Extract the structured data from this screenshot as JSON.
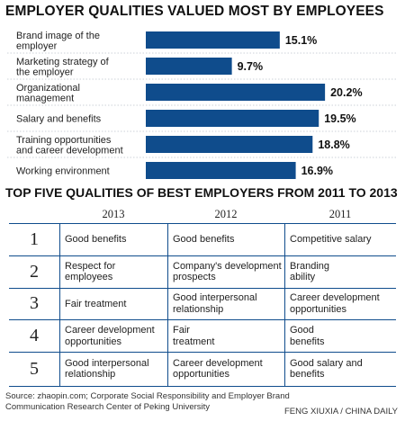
{
  "chart_data": {
    "type": "bar",
    "title": "EMPLOYER QUALITIES VALUED MOST BY EMPLOYEES",
    "categories": [
      "Brand image of the\nemployer",
      "Marketing strategy of\nthe employer",
      "Organizational\nmanagement",
      "Salary and benefits",
      "Training opportunities\nand career development",
      "Working environment"
    ],
    "values": [
      15.1,
      9.7,
      20.2,
      19.5,
      18.8,
      16.9
    ],
    "value_labels": [
      "15.1%",
      "9.7%",
      "20.2%",
      "19.5%",
      "18.8%",
      "16.9%"
    ],
    "xlim": [
      0,
      21
    ],
    "grid": false,
    "orientation": "horizontal",
    "color": "#0f4c8c"
  },
  "table": {
    "title": "TOP FIVE QUALITIES OF BEST EMPLOYERS FROM 2011 TO 2013",
    "years": [
      "2013",
      "2012",
      "2011"
    ],
    "rows": [
      {
        "rank": "1",
        "cells": [
          "Good benefits",
          "Good benefits",
          "Competitive salary"
        ]
      },
      {
        "rank": "2",
        "cells": [
          "Respect for\nemployees",
          "Company's development\nprospects",
          "Branding\nability"
        ]
      },
      {
        "rank": "3",
        "cells": [
          "Fair treatment",
          "Good interpersonal\nrelationship",
          "Career development\nopportunities"
        ]
      },
      {
        "rank": "4",
        "cells": [
          "Career development\nopportunities",
          "Fair\ntreatment",
          "Good\nbenefits"
        ]
      },
      {
        "rank": "5",
        "cells": [
          "Good interpersonal\nrelationship",
          "Career development\nopportunities",
          "Good salary and\nbenefits"
        ]
      }
    ]
  },
  "source": "Source: zhaopin.com; Corporate Social Responsibility and Employer Brand\nCommunication Research Center of Peking University",
  "credit": "FENG XIUXIA / CHINA DAILY"
}
